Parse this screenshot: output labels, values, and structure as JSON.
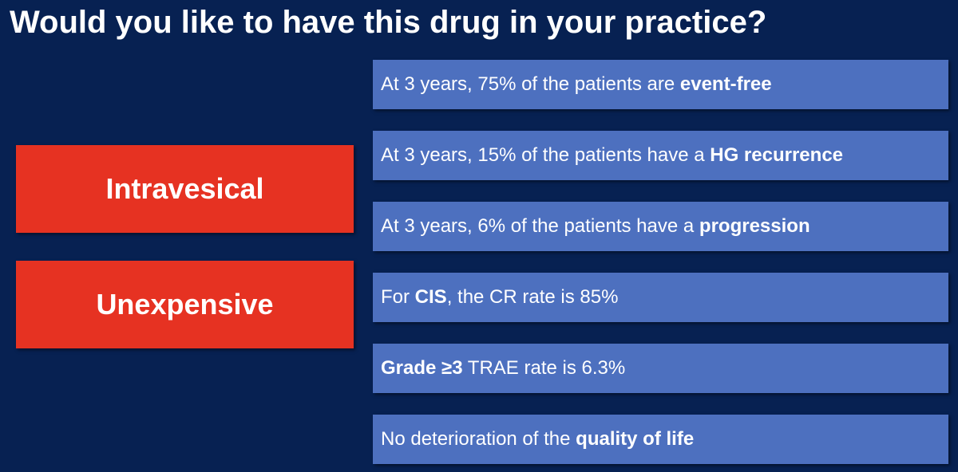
{
  "title": "Would you like to have this drug in your practice?",
  "tags": [
    "Intravesical",
    "Unexpensive"
  ],
  "items": [
    [
      {
        "text": "At 3 years, 75% of the patients are ",
        "bold": false
      },
      {
        "text": "event-free",
        "bold": true
      }
    ],
    [
      {
        "text": "At 3 years, 15% of the patients have a ",
        "bold": false
      },
      {
        "text": "HG recurrence",
        "bold": true
      }
    ],
    [
      {
        "text": "At 3 years, 6% of the patients have a ",
        "bold": false
      },
      {
        "text": "progression",
        "bold": true
      }
    ],
    [
      {
        "text": "For ",
        "bold": false
      },
      {
        "text": "CIS",
        "bold": true
      },
      {
        "text": ", the CR rate is 85%",
        "bold": false
      }
    ],
    [
      {
        "text": "Grade ≥3",
        "bold": true
      },
      {
        "text": " TRAE rate is 6.3%",
        "bold": false
      }
    ],
    [
      {
        "text": "No deterioration of the ",
        "bold": false
      },
      {
        "text": "quality of life",
        "bold": true
      }
    ]
  ]
}
